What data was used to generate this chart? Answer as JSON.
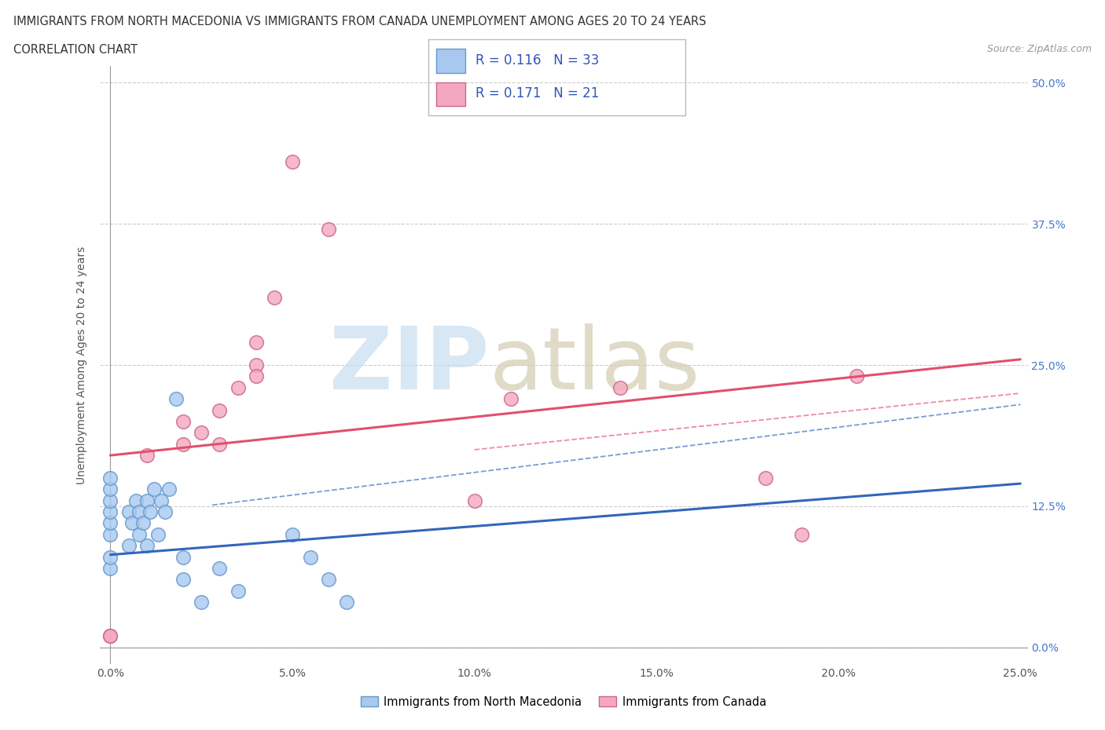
{
  "title_line1": "IMMIGRANTS FROM NORTH MACEDONIA VS IMMIGRANTS FROM CANADA UNEMPLOYMENT AMONG AGES 20 TO 24 YEARS",
  "title_line2": "CORRELATION CHART",
  "source_text": "Source: ZipAtlas.com",
  "ylabel": "Unemployment Among Ages 20 to 24 years",
  "legend_label1": "Immigrants from North Macedonia",
  "legend_label2": "Immigrants from Canada",
  "R1": 0.116,
  "N1": 33,
  "R2": 0.171,
  "N2": 21,
  "color1": "#a8c8f0",
  "color2": "#f4a8c0",
  "trend1_color": "#3366bb",
  "trend2_color": "#e05070",
  "xlim": [
    0.0,
    0.25
  ],
  "ylim": [
    0.0,
    0.5
  ],
  "ytick_labels": [
    "0.0%",
    "12.5%",
    "25.0%",
    "37.5%",
    "50.0%"
  ],
  "ytick_positions": [
    0.0,
    0.125,
    0.25,
    0.375,
    0.5
  ],
  "xtick_positions": [
    0.0,
    0.05,
    0.1,
    0.15,
    0.2,
    0.25
  ],
  "blue_x": [
    0.0,
    0.0,
    0.0,
    0.0,
    0.0,
    0.0,
    0.0,
    0.0,
    0.005,
    0.005,
    0.006,
    0.007,
    0.008,
    0.008,
    0.009,
    0.01,
    0.01,
    0.011,
    0.012,
    0.013,
    0.014,
    0.015,
    0.016,
    0.018,
    0.02,
    0.02,
    0.025,
    0.03,
    0.035,
    0.05,
    0.055,
    0.06,
    0.065
  ],
  "blue_y": [
    0.07,
    0.08,
    0.1,
    0.11,
    0.12,
    0.13,
    0.14,
    0.15,
    0.09,
    0.12,
    0.11,
    0.13,
    0.1,
    0.12,
    0.11,
    0.09,
    0.13,
    0.12,
    0.14,
    0.1,
    0.13,
    0.12,
    0.14,
    0.22,
    0.08,
    0.06,
    0.04,
    0.07,
    0.05,
    0.1,
    0.08,
    0.06,
    0.04
  ],
  "pink_x": [
    0.0,
    0.0,
    0.01,
    0.02,
    0.02,
    0.025,
    0.03,
    0.03,
    0.035,
    0.04,
    0.04,
    0.04,
    0.045,
    0.05,
    0.06,
    0.1,
    0.11,
    0.14,
    0.18,
    0.19,
    0.205
  ],
  "pink_y": [
    0.01,
    0.01,
    0.17,
    0.18,
    0.2,
    0.19,
    0.18,
    0.21,
    0.23,
    0.25,
    0.27,
    0.24,
    0.31,
    0.43,
    0.37,
    0.13,
    0.22,
    0.23,
    0.15,
    0.1,
    0.24
  ]
}
